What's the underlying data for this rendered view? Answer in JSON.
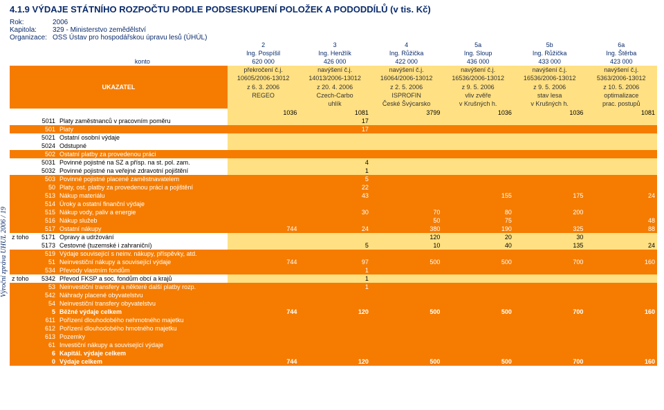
{
  "title": "4.1.9 VÝDAJE STÁTNÍHO ROZPOČTU PODLE PODSESKUPENÍ POLOŽEK A PODODDÍLŮ (v tis. Kč)",
  "meta": {
    "rok_label": "Rok:",
    "rok": "2006",
    "kapitola_label": "Kapitola:",
    "kapitola": "329 - Ministerstvo zemědělství",
    "org_label": "Organizace:",
    "org": "OSS Ústav pro hospodářskou úpravu lesů (ÚHÚL)"
  },
  "konto_label": "konto",
  "ukazatel": "UKAZATEL",
  "side_footer": "Výroční zpráva ÚHÚL 2006 / 19",
  "cols": [
    {
      "num": "2",
      "name": "Ing. Pospíšil",
      "amt": "620 000",
      "d": [
        "překročení č.j.",
        "10605/2006-13012",
        "z 6. 3. 2006",
        "REGEO",
        ""
      ]
    },
    {
      "num": "3",
      "name": "Ing. Henžlík",
      "amt": "426 000",
      "d": [
        "navýšení č.j.",
        "14013/2006-13012",
        "z 20. 4. 2006",
        "Czech-Carbo",
        "uhlík"
      ]
    },
    {
      "num": "4",
      "name": "Ing. Růžička",
      "amt": "422 000",
      "d": [
        "navýšení č.j.",
        "16064/2006-13012",
        "z 2. 5. 2006",
        "ISPROFIN",
        "České Švýcarsko"
      ]
    },
    {
      "num": "5a",
      "name": "Ing. Sloup",
      "amt": "436 000",
      "d": [
        "navýšení č.j.",
        "16536/2006-13012",
        "z 9. 5. 2006",
        "vliv zvěře",
        "v Krušných h."
      ]
    },
    {
      "num": "5b",
      "name": "Ing. Růžička",
      "amt": "433 000",
      "d": [
        "navýšení č.j.",
        "16536/2006-13012",
        "z 9. 5. 2006",
        "stav lesa",
        "v Krušných h."
      ]
    },
    {
      "num": "6a",
      "name": "Ing. Štěrba",
      "amt": "423 000",
      "d": [
        "navýšení č.j.",
        "5363/2006-13012",
        "z 10. 5. 2006",
        "optimalizace",
        "prac. postupů"
      ]
    }
  ],
  "proj_row": [
    "1036",
    "1081",
    "3799",
    "1036",
    "1036",
    "1081"
  ],
  "rows": [
    {
      "k": "5011",
      "l": "Platy zaměstnanců v pracovním poměru",
      "v": [
        "",
        "17",
        "",
        "",
        "",
        ""
      ]
    },
    {
      "k": "501",
      "l": "Platy",
      "v": [
        "",
        "17",
        "",
        "",
        "",
        ""
      ],
      "hl": true
    },
    {
      "k": "5021",
      "l": "Ostatní osobní výdaje",
      "v": [
        "",
        "",
        "",
        "",
        "",
        ""
      ]
    },
    {
      "k": "5024",
      "l": "Odstupné",
      "v": [
        "",
        "",
        "",
        "",
        "",
        ""
      ]
    },
    {
      "k": "502",
      "l": "Ostatní platby za provedenou práci",
      "v": [
        "",
        "",
        "",
        "",
        "",
        ""
      ],
      "hl": true
    },
    {
      "k": "5031",
      "l": "Povinné pojistné na SZ a přísp. na st. pol. zam.",
      "v": [
        "",
        "4",
        "",
        "",
        "",
        ""
      ]
    },
    {
      "k": "5032",
      "l": "Povinné pojistné na veřejné zdravotní pojištění",
      "v": [
        "",
        "1",
        "",
        "",
        "",
        ""
      ]
    },
    {
      "k": "503",
      "l": "Povinné pojistné placené zaměstnavatelem",
      "v": [
        "",
        "5",
        "",
        "",
        "",
        ""
      ],
      "hl": true
    },
    {
      "k": "50",
      "l": "Platy, ost. platby za provedenou práci a pojištění",
      "v": [
        "",
        "22",
        "",
        "",
        "",
        ""
      ],
      "hl": true
    },
    {
      "k": "513",
      "l": "Nákup materiálu",
      "v": [
        "",
        "43",
        "",
        "155",
        "175",
        "24"
      ],
      "hl": true
    },
    {
      "k": "514",
      "l": "Úroky a ostatní finanční výdaje",
      "v": [
        "",
        "",
        "",
        "",
        "",
        ""
      ],
      "hl": true
    },
    {
      "k": "515",
      "l": "Nákup vody, paliv a energie",
      "v": [
        "",
        "30",
        "70",
        "80",
        "200",
        ""
      ],
      "hl": true
    },
    {
      "k": "516",
      "l": "Nákup služeb",
      "v": [
        "",
        "",
        "50",
        "75",
        "",
        "48"
      ],
      "hl": true
    },
    {
      "k": "517",
      "l": "Ostatní nákupy",
      "v": [
        "744",
        "24",
        "380",
        "190",
        "325",
        "88"
      ],
      "hl": true
    },
    {
      "pre": "z toho",
      "k": "5171",
      "l": "Opravy a udržování",
      "v": [
        "",
        "",
        "120",
        "20",
        "30",
        ""
      ]
    },
    {
      "k": "5173",
      "l": "Cestovné (tuzemské i zahraniční)",
      "v": [
        "",
        "5",
        "10",
        "40",
        "135",
        "24"
      ]
    },
    {
      "k": "519",
      "l": "Výdaje související s neinv. nákupy, příspěvky, atd.",
      "v": [
        "",
        "",
        "",
        "",
        "",
        ""
      ],
      "hl": true
    },
    {
      "k": "51",
      "l": "Neinvestiční nákupy a související výdaje",
      "v": [
        "744",
        "97",
        "500",
        "500",
        "700",
        "160"
      ],
      "hl": true
    },
    {
      "k": "534",
      "l": "Převody vlastním fondům",
      "v": [
        "",
        "1",
        "",
        "",
        "",
        ""
      ],
      "hl": true
    },
    {
      "pre": "z toho",
      "k": "5342",
      "l": "Převod FKSP a soc. fondům obcí a krajů",
      "v": [
        "",
        "1",
        "",
        "",
        "",
        ""
      ]
    },
    {
      "k": "53",
      "l": "Neinvestiční transfery a některé další platby rozp.",
      "v": [
        "",
        "1",
        "",
        "",
        "",
        ""
      ],
      "hl": true
    },
    {
      "k": "542",
      "l": "Náhrady placené obyvatelstvu",
      "v": [
        "",
        "",
        "",
        "",
        "",
        ""
      ],
      "hl": true
    },
    {
      "k": "54",
      "l": "Neinvestiční transfery obyvatelstvu",
      "v": [
        "",
        "",
        "",
        "",
        "",
        ""
      ],
      "hl": true
    },
    {
      "k": "5",
      "l": "Běžné výdaje celkem",
      "v": [
        "744",
        "120",
        "500",
        "500",
        "700",
        "160"
      ],
      "hl": true,
      "bold": true
    },
    {
      "k": "611",
      "l": "Pořízení dlouhodobého nehmotného majetku",
      "v": [
        "",
        "",
        "",
        "",
        "",
        ""
      ],
      "hl": true
    },
    {
      "k": "612",
      "l": "Pořízení dlouhodobého hmotného majetku",
      "v": [
        "",
        "",
        "",
        "",
        "",
        ""
      ],
      "hl": true
    },
    {
      "k": "613",
      "l": "Pozemky",
      "v": [
        "",
        "",
        "",
        "",
        "",
        ""
      ],
      "hl": true
    },
    {
      "k": "61",
      "l": "Investiční nákupy a související výdaje",
      "v": [
        "",
        "",
        "",
        "",
        "",
        ""
      ],
      "hl": true
    },
    {
      "k": "6",
      "l": "Kapitál. výdaje celkem",
      "v": [
        "",
        "",
        "",
        "",
        "",
        ""
      ],
      "hl": true,
      "bold": true
    },
    {
      "k": "0",
      "l": "Výdaje celkem",
      "v": [
        "744",
        "120",
        "500",
        "500",
        "700",
        "160"
      ],
      "hl": true,
      "bold": true
    }
  ]
}
